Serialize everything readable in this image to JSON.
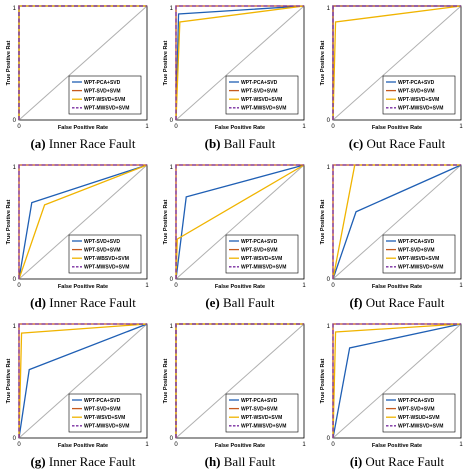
{
  "figure": {
    "series_styles": [
      {
        "color": "#1f5fb4",
        "dash": ""
      },
      {
        "color": "#c65a1e",
        "dash": ""
      },
      {
        "color": "#f0b400",
        "dash": ""
      },
      {
        "color": "#7a2fa0",
        "dash": "4,2.5"
      }
    ],
    "diagonal_color": "#b0b0b0",
    "xlabel": "False Positive Rate",
    "ylabel": "True Positive Rat",
    "ticks": [
      "0",
      "1"
    ]
  },
  "chart_data": [
    {
      "type": "line",
      "caption_letter": "(a)",
      "caption_text": "Inner Race Fault",
      "xlim": [
        0,
        1
      ],
      "ylim": [
        0,
        1
      ],
      "legend": "bottom-right",
      "series": [
        {
          "name": "WPT-PCA+SVD",
          "x": [
            0,
            0,
            1
          ],
          "y": [
            0,
            1,
            1
          ]
        },
        {
          "name": "WPT-SVD+SVM",
          "x": [
            0,
            0,
            1
          ],
          "y": [
            0,
            1,
            1
          ]
        },
        {
          "name": "WPT-WSVD+SVM",
          "x": [
            0,
            0,
            1
          ],
          "y": [
            0,
            1,
            1
          ]
        },
        {
          "name": "WPT-MWSVD+SVM",
          "x": [
            0,
            0,
            1
          ],
          "y": [
            0,
            1,
            1
          ]
        }
      ]
    },
    {
      "type": "line",
      "caption_letter": "(b)",
      "caption_text": "Ball Fault",
      "xlim": [
        0,
        1
      ],
      "ylim": [
        0,
        1
      ],
      "legend": "bottom-right",
      "series": [
        {
          "name": "WPT-PCA+SVD",
          "x": [
            0,
            0.02,
            1
          ],
          "y": [
            0,
            0.93,
            1
          ]
        },
        {
          "name": "WPT-SVD+SVM",
          "x": [
            0,
            0,
            1
          ],
          "y": [
            0,
            1,
            1
          ]
        },
        {
          "name": "WPT-WSVD+SVM",
          "x": [
            0,
            0.03,
            1
          ],
          "y": [
            0,
            0.86,
            1
          ]
        },
        {
          "name": "WPT-MWSVD+SVM",
          "x": [
            0,
            0,
            1
          ],
          "y": [
            0,
            1,
            1
          ]
        }
      ]
    },
    {
      "type": "line",
      "caption_letter": "(c)",
      "caption_text": "Out Race Fault",
      "xlim": [
        0,
        1
      ],
      "ylim": [
        0,
        1
      ],
      "legend": "bottom-right",
      "series": [
        {
          "name": "WPT-PCA+SVD",
          "x": [
            0,
            0,
            1
          ],
          "y": [
            0,
            1,
            1
          ]
        },
        {
          "name": "WPT-SVD+SVM",
          "x": [
            0,
            0,
            1
          ],
          "y": [
            0,
            1,
            1
          ]
        },
        {
          "name": "WPT-WSVD+SVM",
          "x": [
            0,
            0.02,
            1
          ],
          "y": [
            0,
            0.86,
            1
          ]
        },
        {
          "name": "WPT-MWSVD+SVM",
          "x": [
            0,
            0,
            1
          ],
          "y": [
            0,
            1,
            1
          ]
        }
      ]
    },
    {
      "type": "line",
      "caption_letter": "(d)",
      "caption_text": "Inner Race Fault",
      "xlim": [
        0,
        1
      ],
      "ylim": [
        0,
        1
      ],
      "legend": "bottom-right",
      "series": [
        {
          "name": "WPT-SVD+SVD",
          "x": [
            0,
            0.1,
            1
          ],
          "y": [
            0,
            0.67,
            1
          ]
        },
        {
          "name": "WPT-SVD+SVM",
          "x": [
            0,
            0,
            1
          ],
          "y": [
            0,
            1,
            1
          ]
        },
        {
          "name": "WPT-WBSVD+SVM",
          "x": [
            0,
            0.2,
            1
          ],
          "y": [
            0,
            0.65,
            1
          ]
        },
        {
          "name": "WPT-MWSVD+SVM",
          "x": [
            0,
            0,
            1
          ],
          "y": [
            0,
            1,
            1
          ]
        }
      ]
    },
    {
      "type": "line",
      "caption_letter": "(e)",
      "caption_text": "Ball Fault",
      "xlim": [
        0,
        1
      ],
      "ylim": [
        0,
        1
      ],
      "legend": "bottom-right",
      "series": [
        {
          "name": "WPT-PCA+SVD",
          "x": [
            0,
            0.08,
            1
          ],
          "y": [
            0,
            0.72,
            1
          ]
        },
        {
          "name": "WPT-SVD+SVM",
          "x": [
            0,
            0,
            1
          ],
          "y": [
            0,
            1,
            1
          ]
        },
        {
          "name": "WPT-WSVD+SVM",
          "x": [
            0,
            0.01,
            1
          ],
          "y": [
            0,
            0.35,
            1
          ]
        },
        {
          "name": "WPT-MWSVD+SVM",
          "x": [
            0,
            0,
            1
          ],
          "y": [
            0,
            1,
            1
          ]
        }
      ]
    },
    {
      "type": "line",
      "caption_letter": "(f)",
      "caption_text": "Out Race Fault",
      "xlim": [
        0,
        1
      ],
      "ylim": [
        0,
        1
      ],
      "legend": "bottom-right",
      "series": [
        {
          "name": "WPT-PCA+SVD",
          "x": [
            0,
            0.18,
            1
          ],
          "y": [
            0,
            0.59,
            1
          ]
        },
        {
          "name": "WPT-SVD+SVM",
          "x": [
            0,
            0,
            1
          ],
          "y": [
            0,
            1,
            1
          ]
        },
        {
          "name": "WPT-WSVD+SVM",
          "x": [
            0,
            0.17,
            1
          ],
          "y": [
            0,
            1,
            1
          ]
        },
        {
          "name": "WPT-MWSVD+SVM",
          "x": [
            0,
            0,
            1
          ],
          "y": [
            0,
            1,
            1
          ]
        }
      ]
    },
    {
      "type": "line",
      "caption_letter": "(g)",
      "caption_text": "Inner Race Fault",
      "xlim": [
        0,
        1
      ],
      "ylim": [
        0,
        1
      ],
      "legend": "bottom-right",
      "series": [
        {
          "name": "WPT-PCA+SVD",
          "x": [
            0,
            0.08,
            1
          ],
          "y": [
            0,
            0.6,
            1
          ]
        },
        {
          "name": "WPT-SVD+SVM",
          "x": [
            0,
            0,
            1
          ],
          "y": [
            0,
            1,
            1
          ]
        },
        {
          "name": "WPT-WSVD+SVM",
          "x": [
            0,
            0.02,
            1
          ],
          "y": [
            0,
            0.92,
            1
          ]
        },
        {
          "name": "WPT-MWSVD+SVM",
          "x": [
            0,
            0,
            1
          ],
          "y": [
            0,
            1,
            1
          ]
        }
      ]
    },
    {
      "type": "line",
      "caption_letter": "(h)",
      "caption_text": "Ball Fault",
      "xlim": [
        0,
        1
      ],
      "ylim": [
        0,
        1
      ],
      "legend": "bottom-right",
      "series": [
        {
          "name": "WPT-PCA+SVD",
          "x": [
            0,
            0,
            1
          ],
          "y": [
            0,
            1,
            1
          ]
        },
        {
          "name": "WPT-SVD+SVM",
          "x": [
            0,
            0,
            1
          ],
          "y": [
            0,
            1,
            1
          ]
        },
        {
          "name": "WPT-WSVD+SVM",
          "x": [
            0,
            0,
            1
          ],
          "y": [
            0,
            1,
            1
          ]
        },
        {
          "name": "WPT-MWSVD+SVM",
          "x": [
            0,
            0,
            1
          ],
          "y": [
            0,
            1,
            1
          ]
        }
      ]
    },
    {
      "type": "line",
      "caption_letter": "(i)",
      "caption_text": "Out Race Fault",
      "xlim": [
        0,
        1
      ],
      "ylim": [
        0,
        1
      ],
      "legend": "bottom-right",
      "series": [
        {
          "name": "WPT-PCA+SVD",
          "x": [
            0,
            0.13,
            1
          ],
          "y": [
            0,
            0.79,
            1
          ]
        },
        {
          "name": "WPT-SVD+SVM",
          "x": [
            0,
            0,
            1
          ],
          "y": [
            0,
            1,
            1
          ]
        },
        {
          "name": "WPT-WSUD+SVM",
          "x": [
            0,
            0.02,
            1
          ],
          "y": [
            0,
            0.93,
            1
          ]
        },
        {
          "name": "WPT-MWSVD+SVM",
          "x": [
            0,
            0,
            1
          ],
          "y": [
            0,
            1,
            1
          ]
        }
      ]
    }
  ]
}
